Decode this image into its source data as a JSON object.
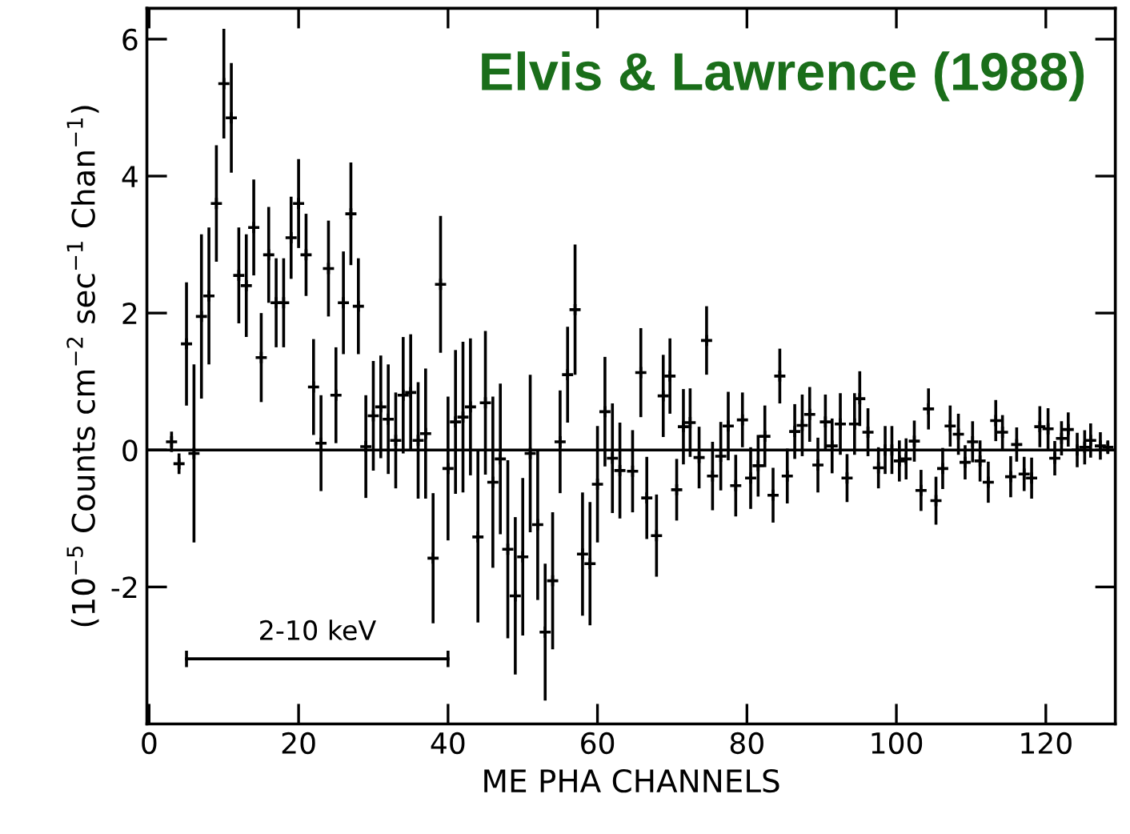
{
  "chart_data": {
    "type": "scatter",
    "title": "Elvis & Lawrence (1988)",
    "xlabel": "ME PHA CHANNELS",
    "ylabel": "(10$^{−5}$ Counts cm$^{−2}$ sec$^{−1}$ Chan$^{−1}$)",
    "xlim": [
      -0.3,
      129.3
    ],
    "ylim": [
      -4.0,
      6.45
    ],
    "xticks": [
      0,
      20,
      40,
      60,
      80,
      100,
      120
    ],
    "yticks": [
      -2,
      0,
      2,
      4,
      6
    ],
    "grid": false,
    "legend": false,
    "ref_lines": [
      {
        "axis": "y",
        "value": 0,
        "color": "#000000"
      }
    ],
    "annotations": [
      {
        "text": "2-10 keV",
        "x": 22.5,
        "y": -3.05
      }
    ],
    "series": [
      {
        "color": "#000000",
        "marker": "cross",
        "x": [
          3,
          4,
          5,
          6,
          7,
          8,
          9,
          10,
          11,
          12,
          13,
          14,
          15,
          16,
          17,
          18,
          19,
          20,
          21,
          22,
          23,
          24,
          25,
          26,
          27,
          28,
          29,
          30,
          31,
          32,
          33,
          34,
          35,
          36,
          37,
          38,
          39,
          40,
          41,
          42,
          43,
          44,
          45,
          46,
          47,
          48,
          49,
          50,
          51,
          52,
          53,
          54,
          55,
          56,
          57,
          58,
          59,
          60,
          61,
          62,
          63,
          64.7,
          65.8,
          66.6,
          67.9,
          68.8,
          69.7,
          70.6,
          71.5,
          72.4,
          73.6,
          74.6,
          75.4,
          76.5,
          77.5,
          78.5,
          79.4,
          80.5,
          81.5,
          82.4,
          83.5,
          84.4,
          85.4,
          86.4,
          87.4,
          88.4,
          89.5,
          90.5,
          91.4,
          92.5,
          93.4,
          94.4,
          95.1,
          96.2,
          97.6,
          98.5,
          99.4,
          100.4,
          101.3,
          102.4,
          103.3,
          104.3,
          105.3,
          106.2,
          107.2,
          108.3,
          109.2,
          110.2,
          111.2,
          112.3,
          113.3,
          114.2,
          115.3,
          116.1,
          117.1,
          118.1,
          119.2,
          120.3,
          121.2,
          122.1,
          123.0,
          124.2,
          125.2,
          126.0,
          127.3,
          128.3
        ],
        "values": [
          0.12,
          -0.2,
          1.55,
          -0.05,
          1.95,
          2.25,
          3.6,
          5.35,
          4.85,
          2.55,
          2.4,
          3.25,
          1.35,
          2.85,
          2.15,
          2.15,
          3.1,
          3.6,
          2.85,
          0.92,
          0.1,
          2.65,
          0.8,
          2.15,
          3.45,
          2.1,
          0.05,
          0.5,
          0.63,
          0.45,
          0.14,
          0.8,
          0.84,
          0.14,
          0.24,
          -1.58,
          2.42,
          -0.27,
          0.41,
          0.48,
          0.63,
          -1.27,
          0.69,
          -0.47,
          -0.13,
          -1.45,
          -2.13,
          -1.56,
          -0.05,
          -1.09,
          -2.66,
          -1.91,
          0.12,
          1.1,
          2.05,
          -1.52,
          -1.66,
          -0.5,
          0.56,
          -0.12,
          -0.3,
          -0.31,
          1.13,
          -0.7,
          -1.25,
          0.79,
          1.08,
          -0.58,
          0.34,
          0.4,
          -0.11,
          1.6,
          -0.38,
          -0.09,
          0.35,
          -0.52,
          0.44,
          -0.41,
          -0.23,
          0.2,
          -0.66,
          1.08,
          -0.38,
          0.27,
          0.36,
          0.52,
          -0.22,
          0.41,
          0.06,
          0.38,
          -0.41,
          0.38,
          0.75,
          0.26,
          -0.26,
          0.0,
          0.0,
          -0.16,
          -0.13,
          0.13,
          -0.59,
          0.6,
          -0.74,
          -0.27,
          0.35,
          0.23,
          -0.18,
          0.12,
          -0.16,
          -0.47,
          0.43,
          0.26,
          -0.39,
          0.08,
          -0.35,
          -0.41,
          0.34,
          0.31,
          -0.12,
          0.17,
          0.3,
          0.0,
          0.04,
          0.14,
          0.06,
          0.04
        ],
        "errors": [
          0.15,
          0.15,
          0.9,
          1.3,
          1.2,
          1.0,
          0.85,
          0.8,
          0.8,
          0.7,
          0.75,
          0.7,
          0.65,
          0.7,
          0.65,
          0.65,
          0.6,
          0.65,
          0.6,
          0.7,
          0.7,
          0.7,
          0.7,
          0.75,
          0.75,
          0.7,
          0.75,
          0.8,
          0.75,
          0.8,
          0.7,
          0.85,
          0.85,
          0.85,
          0.95,
          0.95,
          1.0,
          1.05,
          1.05,
          1.1,
          1.0,
          1.25,
          1.05,
          1.25,
          1.1,
          1.3,
          1.15,
          1.15,
          1.15,
          1.1,
          1.0,
          1.0,
          0.75,
          0.7,
          0.95,
          0.9,
          0.9,
          0.85,
          0.8,
          0.8,
          0.7,
          0.6,
          0.65,
          0.6,
          0.6,
          0.6,
          0.55,
          0.45,
          0.55,
          0.5,
          0.45,
          0.5,
          0.5,
          0.5,
          0.5,
          0.45,
          0.4,
          0.45,
          0.45,
          0.45,
          0.4,
          0.4,
          0.4,
          0.4,
          0.45,
          0.4,
          0.4,
          0.4,
          0.4,
          0.45,
          0.35,
          0.45,
          0.4,
          0.35,
          0.3,
          0.35,
          0.35,
          0.3,
          0.3,
          0.3,
          0.3,
          0.3,
          0.35,
          0.3,
          0.3,
          0.3,
          0.25,
          0.3,
          0.3,
          0.3,
          0.3,
          0.25,
          0.3,
          0.25,
          0.25,
          0.3,
          0.3,
          0.3,
          0.25,
          0.25,
          0.25,
          0.25,
          0.25,
          0.25,
          0.2,
          0.1
        ]
      },
      {
        "type": "line",
        "color": "#000000",
        "x": [
          5,
          40
        ],
        "values": [
          -3.05,
          -3.05
        ],
        "errors": [
          0.12,
          0.12
        ]
      }
    ]
  }
}
